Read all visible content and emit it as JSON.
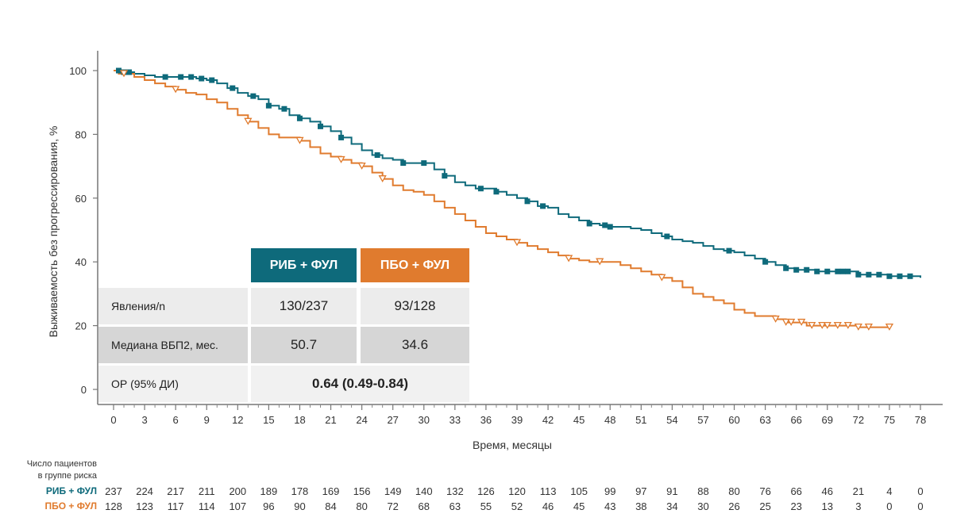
{
  "chart_data": {
    "type": "line",
    "subtype": "kaplan-meier",
    "title": "",
    "xlabel": "Время, месяцы",
    "ylabel": "Выживаемость без прогрессирования, %",
    "xlim": [
      0,
      78
    ],
    "ylim": [
      0,
      100
    ],
    "xticks": [
      0,
      3,
      6,
      9,
      12,
      15,
      18,
      21,
      24,
      27,
      30,
      33,
      36,
      39,
      42,
      45,
      48,
      51,
      54,
      57,
      60,
      63,
      66,
      69,
      72,
      75,
      78
    ],
    "yticks": [
      0,
      20,
      40,
      60,
      80,
      100
    ],
    "grid": false,
    "series": [
      {
        "name": "РИБ + ФУЛ",
        "color": "#0e6a7b",
        "censor_marker": "square",
        "points": [
          [
            0,
            100
          ],
          [
            1,
            99.5
          ],
          [
            2,
            99
          ],
          [
            3,
            98.5
          ],
          [
            4,
            98
          ],
          [
            6,
            98
          ],
          [
            8,
            97.5
          ],
          [
            9,
            97
          ],
          [
            10,
            96
          ],
          [
            11,
            94.5
          ],
          [
            12,
            93
          ],
          [
            13,
            92
          ],
          [
            14,
            91
          ],
          [
            15,
            89
          ],
          [
            16,
            88
          ],
          [
            17,
            86
          ],
          [
            18,
            85
          ],
          [
            19,
            84
          ],
          [
            20,
            82.5
          ],
          [
            21,
            81
          ],
          [
            22,
            79
          ],
          [
            23,
            77
          ],
          [
            24,
            75
          ],
          [
            25,
            73.5
          ],
          [
            26,
            72.5
          ],
          [
            27,
            72
          ],
          [
            28,
            71
          ],
          [
            30,
            71
          ],
          [
            31,
            69
          ],
          [
            32,
            67
          ],
          [
            33,
            65
          ],
          [
            34,
            64
          ],
          [
            35,
            63
          ],
          [
            36,
            63
          ],
          [
            37,
            62
          ],
          [
            38,
            61
          ],
          [
            39,
            60
          ],
          [
            40,
            59
          ],
          [
            41,
            57.5
          ],
          [
            42,
            57
          ],
          [
            43,
            55
          ],
          [
            44,
            54
          ],
          [
            45,
            53
          ],
          [
            46,
            52
          ],
          [
            47,
            51.5
          ],
          [
            48,
            51
          ],
          [
            50,
            50.5
          ],
          [
            51,
            50
          ],
          [
            52,
            49
          ],
          [
            53,
            48
          ],
          [
            54,
            47
          ],
          [
            55,
            46.5
          ],
          [
            56,
            46
          ],
          [
            57,
            45
          ],
          [
            58,
            44
          ],
          [
            59,
            43.5
          ],
          [
            60,
            43
          ],
          [
            61,
            42
          ],
          [
            62,
            41
          ],
          [
            63,
            40
          ],
          [
            64,
            39
          ],
          [
            65,
            38
          ],
          [
            66,
            37.5
          ],
          [
            67,
            37.5
          ],
          [
            68,
            37
          ],
          [
            70,
            37
          ],
          [
            72,
            36
          ],
          [
            75,
            35.5
          ],
          [
            78,
            35
          ]
        ],
        "censored_x": [
          0.5,
          1,
          1.5,
          5,
          6.5,
          7.5,
          8.5,
          9.5,
          11.5,
          13.5,
          15,
          16.5,
          18,
          20,
          22,
          25.5,
          28,
          30,
          32,
          35.5,
          37,
          40,
          41.5,
          46,
          47.5,
          48,
          53.5,
          59.5,
          63,
          65,
          66,
          67,
          68,
          69,
          70,
          70.5,
          71,
          72,
          73,
          74,
          75,
          76,
          77
        ]
      },
      {
        "name": "ПБО + ФУЛ",
        "color": "#e07b2e",
        "censor_marker": "triangle-down",
        "points": [
          [
            0,
            100
          ],
          [
            0.5,
            99
          ],
          [
            1,
            99
          ],
          [
            2,
            98
          ],
          [
            3,
            97
          ],
          [
            4,
            96
          ],
          [
            5,
            95
          ],
          [
            6,
            94
          ],
          [
            7,
            93
          ],
          [
            8,
            92.5
          ],
          [
            9,
            91
          ],
          [
            10,
            90
          ],
          [
            11,
            88
          ],
          [
            12,
            86
          ],
          [
            13,
            84
          ],
          [
            14,
            82
          ],
          [
            15,
            80
          ],
          [
            16,
            79
          ],
          [
            18,
            78
          ],
          [
            19,
            76
          ],
          [
            20,
            74
          ],
          [
            21,
            73
          ],
          [
            22,
            72
          ],
          [
            23,
            71
          ],
          [
            24,
            70
          ],
          [
            25,
            68
          ],
          [
            26,
            66
          ],
          [
            27,
            64
          ],
          [
            28,
            62.5
          ],
          [
            29,
            62
          ],
          [
            30,
            61
          ],
          [
            31,
            59
          ],
          [
            32,
            57
          ],
          [
            33,
            55
          ],
          [
            34,
            53
          ],
          [
            35,
            51
          ],
          [
            36,
            49
          ],
          [
            37,
            48
          ],
          [
            38,
            47
          ],
          [
            39,
            46
          ],
          [
            40,
            45
          ],
          [
            41,
            44
          ],
          [
            42,
            43
          ],
          [
            43,
            42
          ],
          [
            44,
            41
          ],
          [
            45,
            40.5
          ],
          [
            46,
            40
          ],
          [
            48,
            40
          ],
          [
            49,
            39
          ],
          [
            50,
            38
          ],
          [
            51,
            37
          ],
          [
            52,
            36
          ],
          [
            53,
            35
          ],
          [
            54,
            34
          ],
          [
            55,
            32
          ],
          [
            56,
            30
          ],
          [
            57,
            29
          ],
          [
            58,
            28
          ],
          [
            59,
            27
          ],
          [
            60,
            25
          ],
          [
            61,
            24
          ],
          [
            62,
            23
          ],
          [
            63,
            23
          ],
          [
            64,
            22
          ],
          [
            65,
            21
          ],
          [
            66,
            21
          ],
          [
            67,
            20
          ],
          [
            68,
            20
          ],
          [
            70,
            20
          ],
          [
            72,
            19.5
          ],
          [
            75,
            19.5
          ]
        ],
        "censored_x": [
          1,
          6,
          13,
          18,
          22,
          24,
          26,
          39,
          44,
          47,
          53,
          64,
          65,
          65.5,
          66.5,
          67.5,
          68.5,
          69,
          70,
          71,
          72,
          73,
          75
        ]
      }
    ]
  },
  "summary_table": {
    "header_rib": "РИБ + ФУЛ",
    "header_pbo": "ПБО + ФУЛ",
    "header_rib_color": "#0e6a7b",
    "header_pbo_color": "#e07b2e",
    "row_events_label": "Явления/n",
    "row_events_rib": "130/237",
    "row_events_pbo": "93/128",
    "row_median_label": "Медиана ВБП2, мес.",
    "row_median_rib": "50.7",
    "row_median_pbo": "34.6",
    "row_hr_label": "ОР (95% ДИ)",
    "row_hr_value": "0.64 (0.49-0.84)"
  },
  "risk_table": {
    "title_line1": "Число пациентов",
    "title_line2": "в группе риска",
    "times": [
      0,
      3,
      6,
      9,
      12,
      15,
      18,
      21,
      24,
      27,
      30,
      33,
      36,
      39,
      42,
      45,
      48,
      51,
      54,
      57,
      60,
      63,
      66,
      69,
      72,
      75,
      78
    ],
    "rows": [
      {
        "name": "РИБ + ФУЛ",
        "color": "#0e6a7b",
        "counts": [
          "237",
          "224",
          "217",
          "211",
          "200",
          "189",
          "178",
          "169",
          "156",
          "149",
          "140",
          "132",
          "126",
          "120",
          "113",
          "105",
          "99",
          "97",
          "91",
          "88",
          "80",
          "76",
          "66",
          "46",
          "21",
          "4",
          "0"
        ]
      },
      {
        "name": "ПБО + ФУЛ",
        "color": "#e07b2e",
        "counts": [
          "128",
          "123",
          "117",
          "114",
          "107",
          "96",
          "90",
          "84",
          "80",
          "72",
          "68",
          "63",
          "55",
          "52",
          "46",
          "45",
          "43",
          "38",
          "34",
          "30",
          "26",
          "25",
          "23",
          "13",
          "3",
          "0",
          "0"
        ]
      }
    ]
  }
}
